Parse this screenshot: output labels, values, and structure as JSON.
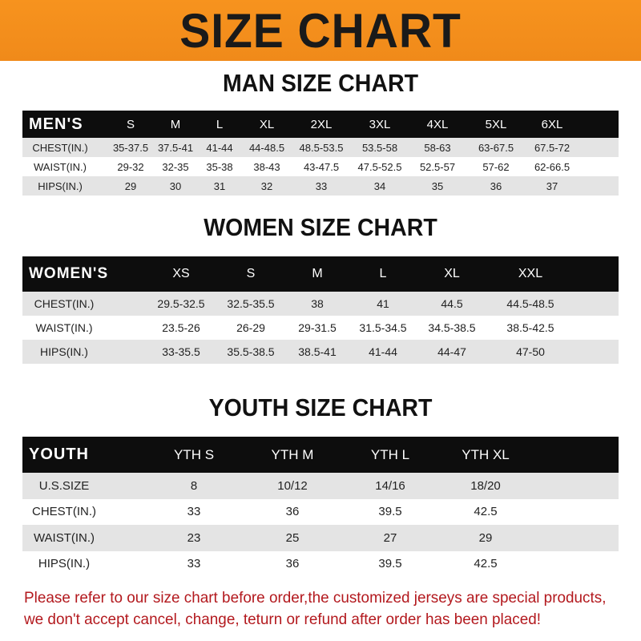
{
  "banner_title": "SIZE CHART",
  "men": {
    "title": "MAN SIZE CHART",
    "header_label": "MEN'S",
    "sizes": [
      "S",
      "M",
      "L",
      "XL",
      "2XL",
      "3XL",
      "4XL",
      "5XL",
      "6XL"
    ],
    "rows": [
      {
        "label": "CHEST(IN.)",
        "values": [
          "35-37.5",
          "37.5-41",
          "41-44",
          "44-48.5",
          "48.5-53.5",
          "53.5-58",
          "58-63",
          "63-67.5",
          "67.5-72"
        ]
      },
      {
        "label": "WAIST(IN.)",
        "values": [
          "29-32",
          "32-35",
          "35-38",
          "38-43",
          "43-47.5",
          "47.5-52.5",
          "52.5-57",
          "57-62",
          "62-66.5"
        ]
      },
      {
        "label": "HIPS(IN.)",
        "values": [
          "29",
          "30",
          "31",
          "32",
          "33",
          "34",
          "35",
          "36",
          "37"
        ]
      }
    ]
  },
  "women": {
    "title": "WOMEN SIZE CHART",
    "header_label": "WOMEN'S",
    "sizes": [
      "XS",
      "S",
      "M",
      "L",
      "XL",
      "XXL"
    ],
    "rows": [
      {
        "label": "CHEST(IN.)",
        "values": [
          "29.5-32.5",
          "32.5-35.5",
          "38",
          "41",
          "44.5",
          "44.5-48.5"
        ]
      },
      {
        "label": "WAIST(IN.)",
        "values": [
          "23.5-26",
          "26-29",
          "29-31.5",
          "31.5-34.5",
          "34.5-38.5",
          "38.5-42.5"
        ]
      },
      {
        "label": "HIPS(IN.)",
        "values": [
          "33-35.5",
          "35.5-38.5",
          "38.5-41",
          "41-44",
          "44-47",
          "47-50"
        ]
      }
    ]
  },
  "youth": {
    "title": "YOUTH SIZE CHART",
    "header_label": "YOUTH",
    "sizes": [
      "YTH S",
      "YTH M",
      "YTH L",
      "YTH XL"
    ],
    "rows": [
      {
        "label": "U.S.SIZE",
        "values": [
          "8",
          "10/12",
          "14/16",
          "18/20"
        ]
      },
      {
        "label": "CHEST(IN.)",
        "values": [
          "33",
          "36",
          "39.5",
          "42.5"
        ]
      },
      {
        "label": "WAIST(IN.)",
        "values": [
          "23",
          "25",
          "27",
          "29"
        ]
      },
      {
        "label": "HIPS(IN.)",
        "values": [
          "33",
          "36",
          "39.5",
          "42.5"
        ]
      }
    ]
  },
  "notice": "Please refer to our size chart before order,the customized jerseys are special products, we don't accept cancel, change, teturn or refund after order has been placed!",
  "colors": {
    "banner": "#f7931e",
    "header_row": "#0d0d0d",
    "stripe": "#e4e4e4",
    "notice": "#b3191e"
  }
}
